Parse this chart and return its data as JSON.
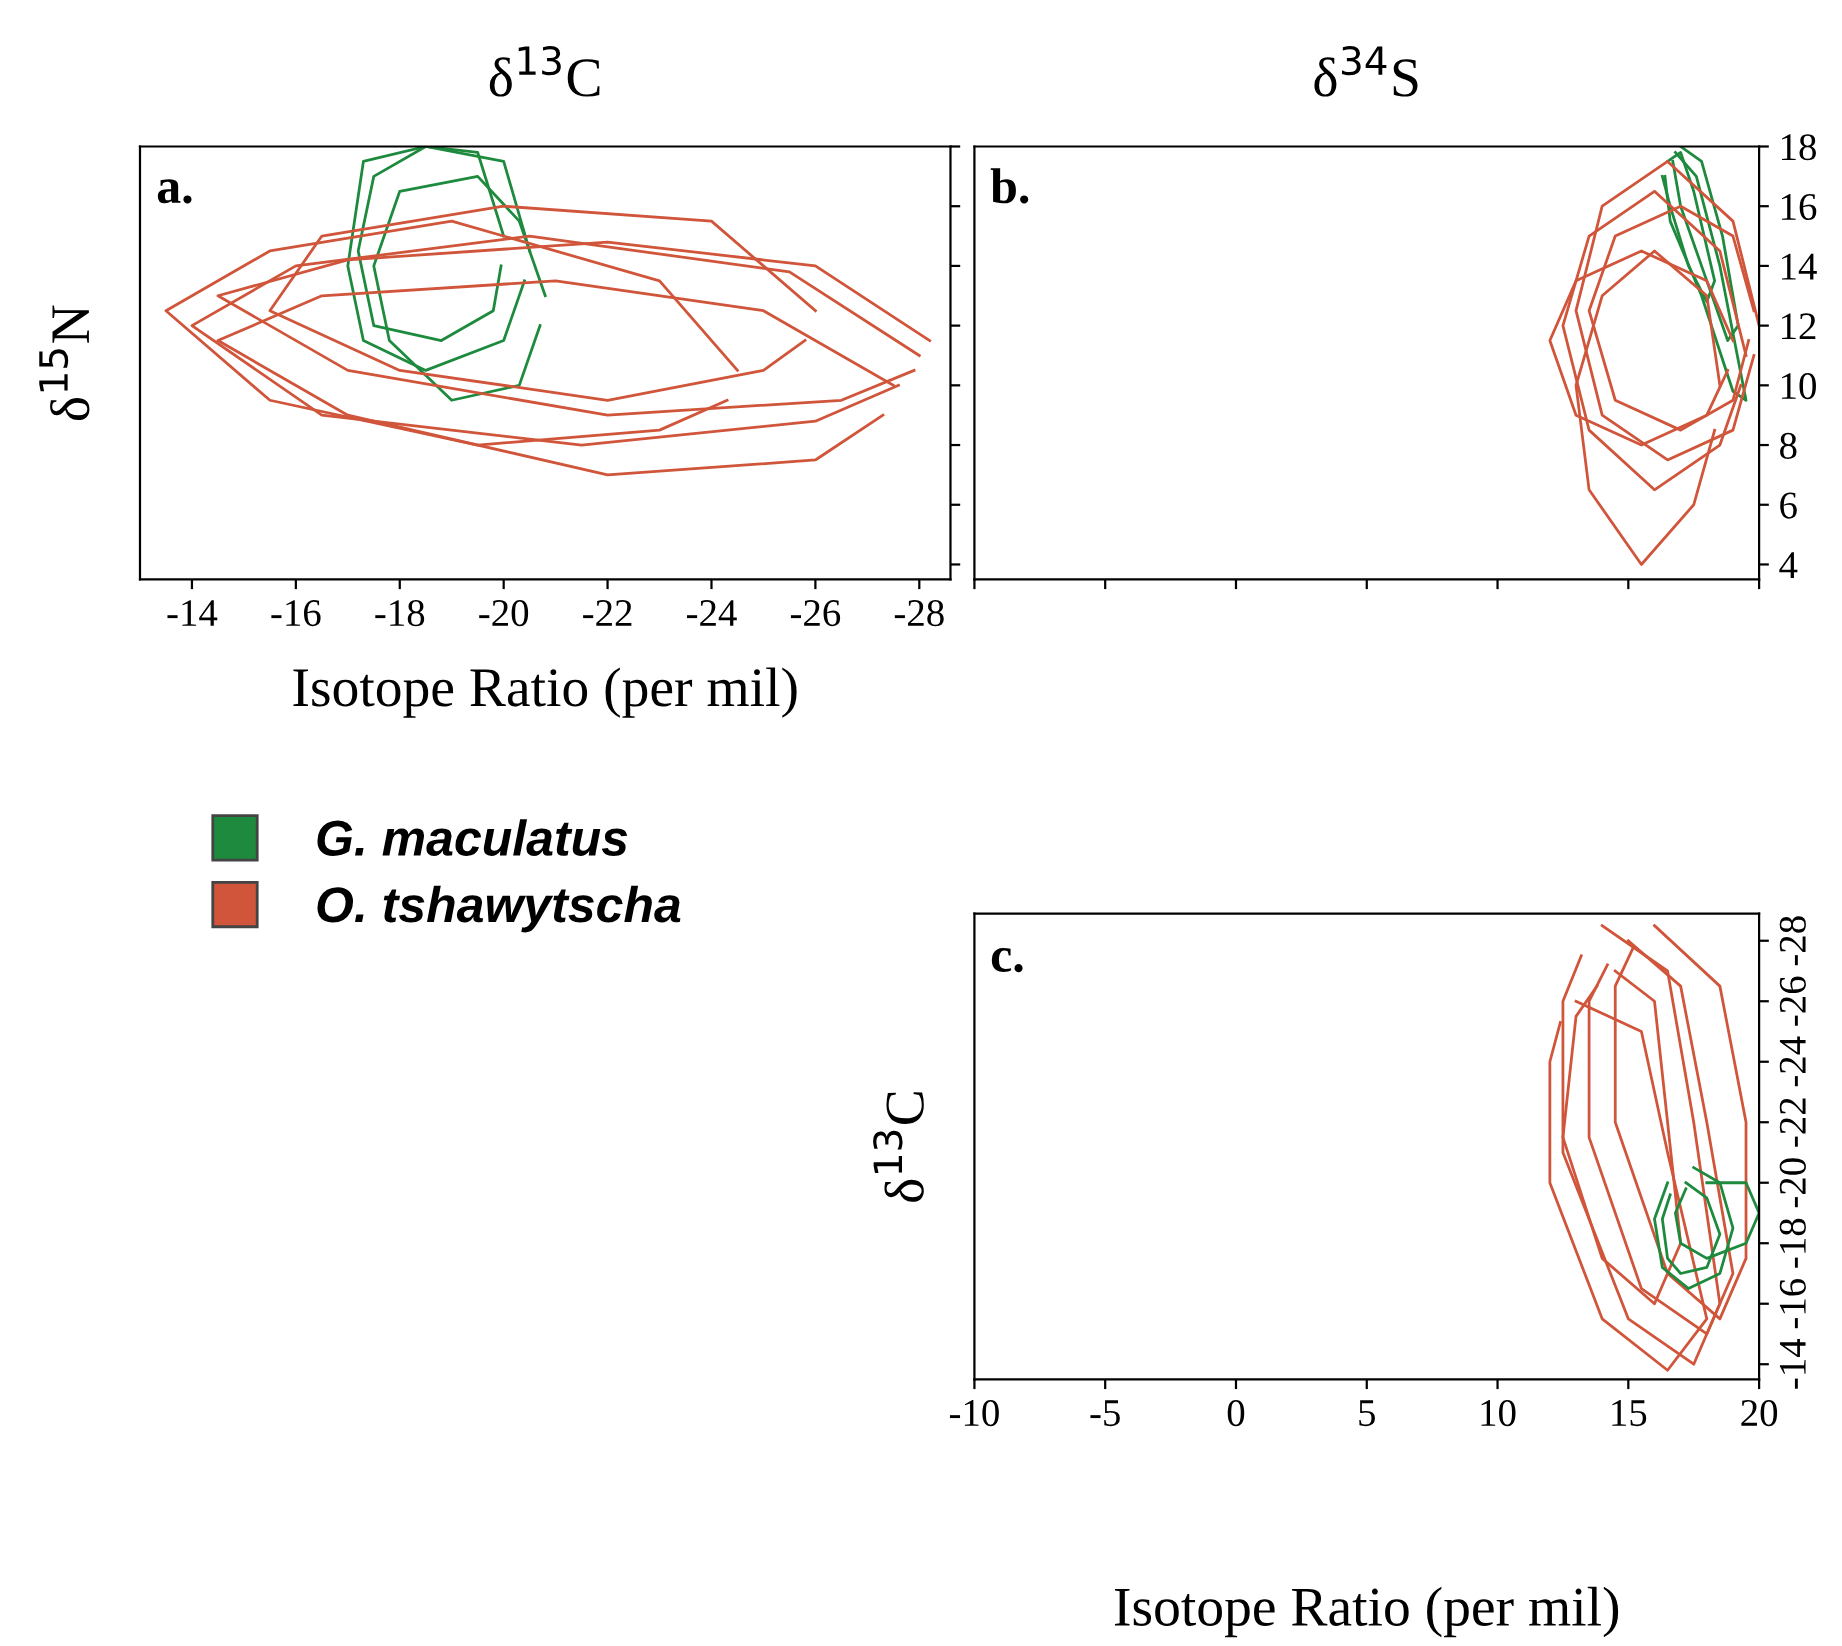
{
  "chart_data": [
    {
      "type": "line",
      "title": "δ$^{13}$C",
      "xlabel": "Isotope Ratio (per mil)",
      "ylabel": "δ$^{15}$N",
      "annotations": [
        "a."
      ],
      "xlim": [
        -13.0,
        -28.6
      ],
      "ylim": [
        3.5,
        18
      ],
      "xticks": [
        -14,
        -16,
        -18,
        -20,
        -22,
        -24,
        -26,
        -28
      ],
      "yticks": [
        4,
        6,
        8,
        10,
        12,
        14,
        16,
        18
      ],
      "tick_labels": "x",
      "grid": false,
      "legend": "bottom",
      "marker": "none",
      "line_style": "solid",
      "series": [
        {
          "name": "G. maculatus",
          "color": "#1e8a3e",
          "x": [
            -20.5,
            -20,
            -18.5,
            -17.3,
            -17,
            -17.3,
            -18.5,
            -20,
            -20.4
          ],
          "values": [
            14.5,
            17.5,
            18,
            17.5,
            14,
            11.5,
            10.5,
            11.5,
            13.5
          ]
        },
        {
          "color": "#1e8a3e",
          "x": [
            -20,
            -19.5,
            -18.5,
            -17.5,
            -17.2,
            -17.5,
            -18.8,
            -19.8,
            -19.95
          ],
          "values": [
            15,
            17.8,
            18,
            17,
            14.5,
            12,
            11.5,
            12.5,
            14
          ]
        },
        {
          "color": "#1e8a3e",
          "x": [
            -20.8,
            -20.3,
            -19.5,
            -18,
            -17.5,
            -17.8,
            -19,
            -20.3,
            -20.7
          ],
          "values": [
            13,
            15.5,
            17,
            16.5,
            14,
            11.5,
            9.5,
            10,
            12
          ]
        },
        {
          "name": "O. tshawytscha",
          "color": "#d0553a",
          "x": [
            -28,
            -25.5,
            -20.5,
            -16,
            -14,
            -16.5,
            -21.5,
            -26,
            -27.6
          ],
          "values": [
            11,
            13.8,
            15,
            14,
            12,
            9,
            8,
            8.8,
            10
          ]
        },
        {
          "color": "#d0553a",
          "x": [
            -27.5,
            -25,
            -21,
            -16.5,
            -14.5,
            -17,
            -22,
            -26,
            -27.3
          ],
          "values": [
            10,
            12.5,
            13.5,
            13,
            11.5,
            9,
            7,
            7.5,
            9
          ]
        },
        {
          "color": "#d0553a",
          "x": [
            -26,
            -24,
            -20,
            -16.5,
            -15.5,
            -18,
            -22,
            -25,
            -25.8
          ],
          "values": [
            12.5,
            15.5,
            16,
            15,
            12.5,
            10.5,
            9.5,
            10.5,
            11.5
          ]
        },
        {
          "color": "#d0553a",
          "x": [
            -28.2,
            -26,
            -22,
            -17,
            -14.5,
            -17,
            -22,
            -26.5,
            -27.9
          ],
          "values": [
            11.5,
            14,
            14.8,
            14.2,
            13,
            10.5,
            9,
            9.5,
            10.5
          ]
        },
        {
          "color": "#d0553a",
          "x": [
            -24.5,
            -23,
            -19,
            -15.5,
            -13.5,
            -15.5,
            -19.5,
            -23,
            -24.3
          ],
          "values": [
            10.5,
            13.5,
            15.5,
            14.5,
            12.5,
            9.5,
            8,
            8.5,
            9.5
          ]
        }
      ]
    },
    {
      "type": "line",
      "title": "δ$^{34}$S",
      "annotations": [
        "b."
      ],
      "xlim": [
        -10,
        20
      ],
      "ylim": [
        3.5,
        18
      ],
      "xticks": [
        -10,
        -5,
        0,
        5,
        10,
        15,
        20
      ],
      "yticks": [
        4,
        6,
        8,
        10,
        12,
        14,
        16,
        18
      ],
      "tick_labels": "y",
      "grid": false,
      "marker": "none",
      "line_style": "solid",
      "series": [
        {
          "color": "#1e8a3e",
          "x": [
            16.8,
            17.6,
            18.5,
            19.5,
            19,
            17.8,
            16.6,
            16.4
          ],
          "values": [
            17.8,
            17,
            14,
            9.5,
            9.8,
            13,
            15.5,
            17
          ]
        },
        {
          "color": "#1e8a3e",
          "x": [
            17,
            17.8,
            18.6,
            19.2,
            18.8,
            18,
            17,
            16.7
          ],
          "values": [
            18,
            17.5,
            15,
            12,
            11.5,
            13.5,
            16,
            17.5
          ]
        },
        {
          "color": "#1e8a3e",
          "x": [
            16.5,
            17,
            17.5,
            18.3,
            18,
            17.3,
            16.6,
            16.3
          ],
          "values": [
            17.5,
            17.8,
            16.5,
            13.5,
            12.8,
            14,
            16,
            17
          ]
        },
        {
          "color": "#d0553a",
          "x": [
            19.5,
            18.5,
            16,
            13.5,
            12.5,
            13.5,
            16,
            18.5,
            19.3
          ],
          "values": [
            11,
            14.5,
            16.5,
            15,
            12,
            8.5,
            6.5,
            8,
            10
          ]
        },
        {
          "color": "#d0553a",
          "x": [
            20,
            19,
            16.5,
            14,
            13,
            14,
            16.5,
            19,
            19.8
          ],
          "values": [
            12,
            15.5,
            17.5,
            16,
            12.5,
            9,
            7.5,
            8.5,
            11
          ]
        },
        {
          "color": "#d0553a",
          "x": [
            19,
            18,
            15.5,
            13,
            12,
            13,
            15.5,
            18,
            18.8
          ],
          "values": [
            11.5,
            13.5,
            14.5,
            13.5,
            11.5,
            9,
            8,
            9,
            10.5
          ]
        },
        {
          "color": "#d0553a",
          "x": [
            18.5,
            18,
            16,
            14,
            13,
            13.5,
            15.5,
            17.5,
            18.3
          ],
          "values": [
            10,
            13,
            14.5,
            13,
            10,
            6.5,
            4,
            6,
            8.5
          ]
        },
        {
          "color": "#d0553a",
          "x": [
            19.8,
            19,
            17,
            14.5,
            13.5,
            14.5,
            17,
            19,
            19.6
          ],
          "values": [
            12.5,
            15,
            16,
            15,
            12.5,
            9.5,
            8.5,
            9.5,
            11.5
          ]
        }
      ]
    },
    {
      "type": "line",
      "xlabel": "Isotope Ratio (per mil)",
      "ylabel": "δ$^{13}$C",
      "annotations": [
        "c."
      ],
      "xlim": [
        -10,
        20
      ],
      "ylim": [
        -13.5,
        -28.9
      ],
      "xticks": [
        -10,
        -5,
        0,
        5,
        10,
        15,
        20
      ],
      "yticks": [
        -14,
        -16,
        -18,
        -20,
        -22,
        -24,
        -26,
        -28
      ],
      "grid": false,
      "marker": "none",
      "line_style": "solid",
      "series": [
        {
          "color": "#d0553a",
          "x": [
            14,
            16.5,
            17.5,
            18.5,
            17.5,
            15,
            12.5,
            12.5,
            13.2
          ],
          "values": [
            -28.5,
            -27,
            -22,
            -16,
            -14,
            -15.5,
            -21,
            -26,
            -27.5
          ]
        },
        {
          "color": "#d0553a",
          "x": [
            15,
            17,
            18,
            19,
            18,
            15.5,
            13.5,
            13.5,
            14.2
          ],
          "values": [
            -28,
            -26.5,
            -22,
            -17,
            -15,
            -16.5,
            -21.5,
            -26,
            -27.2
          ]
        },
        {
          "color": "#d0553a",
          "x": [
            14.5,
            16,
            16.5,
            17,
            16,
            14,
            12.5,
            13,
            13.8
          ],
          "values": [
            -27,
            -26,
            -22,
            -18,
            -16,
            -17.5,
            -21.5,
            -25.5,
            -26.5
          ]
        },
        {
          "color": "#d0553a",
          "x": [
            16,
            18.5,
            19.5,
            19.5,
            18.5,
            16.5,
            14.5,
            14.5,
            15.2
          ],
          "values": [
            -28.5,
            -26.5,
            -22,
            -17.5,
            -15.5,
            -17,
            -22,
            -26.5,
            -27.8
          ]
        },
        {
          "color": "#d0553a",
          "x": [
            13,
            15.5,
            16.5,
            18,
            16.5,
            14,
            12,
            12,
            12.4
          ],
          "values": [
            -26,
            -25,
            -21,
            -15.5,
            -13.8,
            -15.5,
            -20,
            -24,
            -25.3
          ]
        },
        {
          "color": "#1e8a3e",
          "x": [
            17.5,
            18.5,
            19,
            18.5,
            17.3,
            16.3,
            16,
            16.5
          ],
          "values": [
            -20.5,
            -20,
            -18.5,
            -17,
            -16.5,
            -17.2,
            -18.8,
            -20
          ]
        },
        {
          "color": "#1e8a3e",
          "x": [
            17.2,
            18,
            18.5,
            18,
            17,
            16.5,
            16.3,
            16.6
          ],
          "values": [
            -20,
            -19.5,
            -18.3,
            -17.2,
            -17,
            -17.5,
            -18.8,
            -19.6
          ]
        },
        {
          "color": "#1e8a3e",
          "x": [
            18,
            19.5,
            20,
            19.5,
            18,
            17,
            16.8,
            17.2
          ],
          "values": [
            -20,
            -20,
            -19,
            -18,
            -17.5,
            -18,
            -19,
            -19.8
          ]
        }
      ]
    }
  ]
}
